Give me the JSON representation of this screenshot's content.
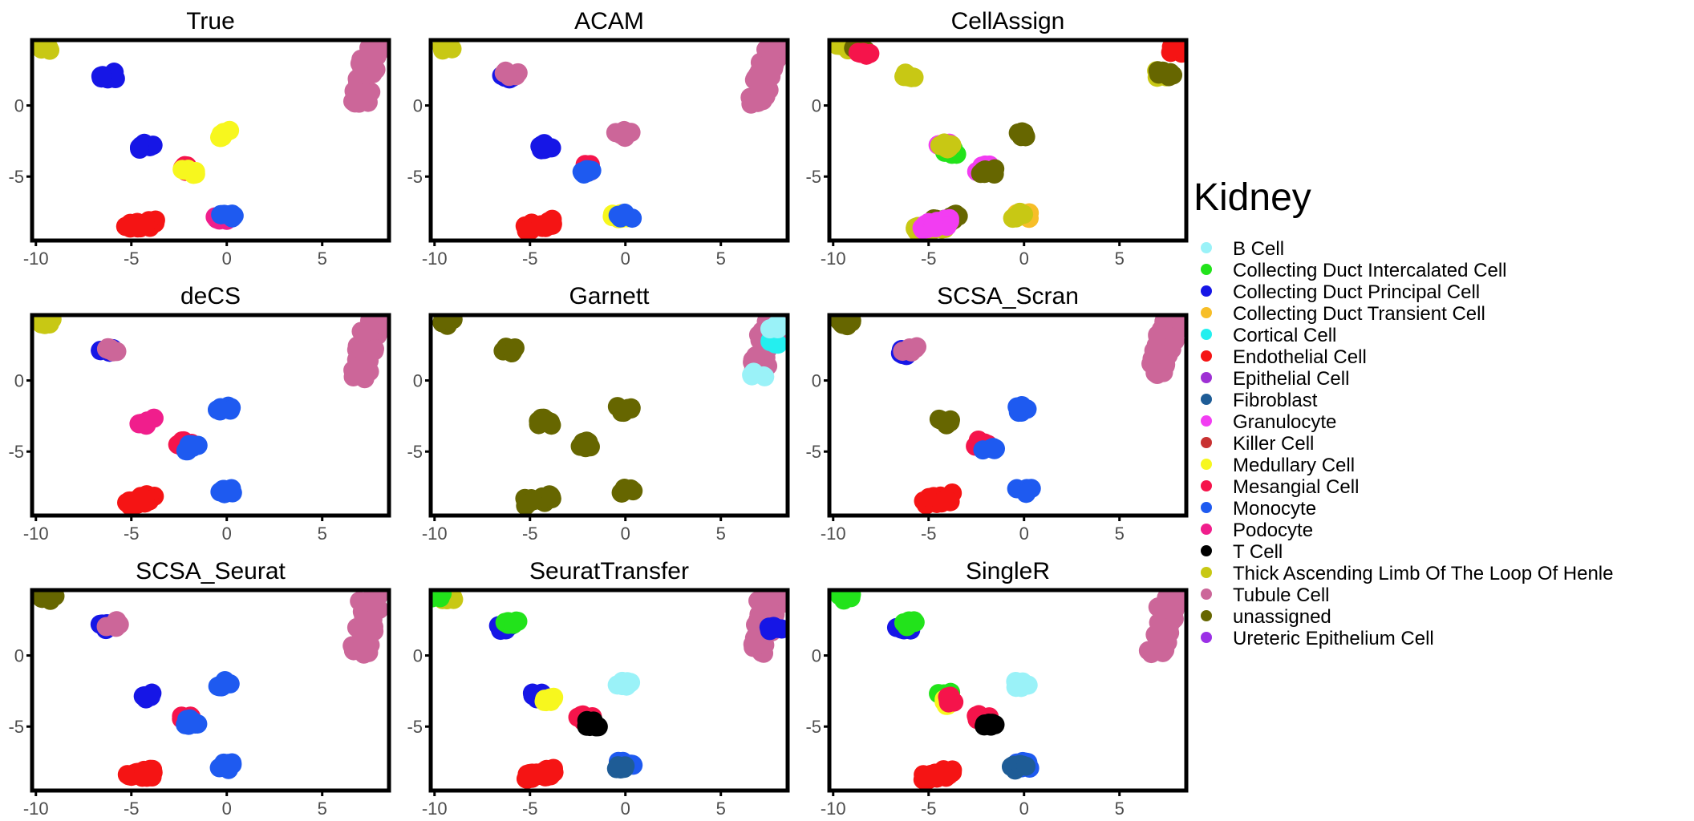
{
  "chart_data": {
    "type": "scatter",
    "xlim": [
      -10.2,
      8.5
    ],
    "ylim": [
      -9.5,
      4.6
    ],
    "x_ticks": [
      -10,
      -5,
      0,
      5
    ],
    "y_ticks": [
      0,
      -5
    ],
    "x_tick_labels": [
      "-10",
      "-5",
      "0",
      "5"
    ],
    "y_tick_labels": [
      "0",
      "-5"
    ],
    "legend": {
      "title": "Kidney",
      "entries": [
        {
          "label": "B Cell",
          "color": "#9AF2F8"
        },
        {
          "label": "Collecting Duct Intercalated Cell",
          "color": "#22E31B"
        },
        {
          "label": "Collecting Duct Principal Cell",
          "color": "#1616E6"
        },
        {
          "label": "Collecting Duct Transient Cell",
          "color": "#F7BE28"
        },
        {
          "label": "Cortical Cell",
          "color": "#24EFEF"
        },
        {
          "label": "Endothelial Cell",
          "color": "#F51414"
        },
        {
          "label": "Epithelial Cell",
          "color": "#9E30D4"
        },
        {
          "label": "Fibroblast",
          "color": "#1E5C96"
        },
        {
          "label": "Granulocyte",
          "color": "#F23DF2"
        },
        {
          "label": "Killer Cell",
          "color": "#C83232"
        },
        {
          "label": "Medullary Cell",
          "color": "#F7F71E"
        },
        {
          "label": "Mesangial Cell",
          "color": "#F5144B"
        },
        {
          "label": "Monocyte",
          "color": "#1E5AF0"
        },
        {
          "label": "Podocyte",
          "color": "#F01E8C"
        },
        {
          "label": "T Cell",
          "color": "#000000"
        },
        {
          "label": "Thick Ascending Limb Of The Loop Of Henle",
          "color": "#C8C814"
        },
        {
          "label": "Tubule Cell",
          "color": "#CC6699"
        },
        {
          "label": "unassigned",
          "color": "#666600"
        },
        {
          "label": "Ureteric Epithelium Cell",
          "color": "#9B30E6"
        }
      ]
    },
    "panels": [
      {
        "title": "True",
        "clusters": [
          {
            "x": -9.4,
            "y": 4.1,
            "color": "#C8C814"
          },
          {
            "x": -6.2,
            "y": 2.1,
            "color": "#1616E6"
          },
          {
            "x": 7.3,
            "y": 2.2,
            "color": "#CC6699"
          },
          {
            "x": -4.2,
            "y": -2.9,
            "color": "#1616E6"
          },
          {
            "x": -2.2,
            "y": -4.4,
            "color": "#F5144B"
          },
          {
            "x": -2.0,
            "y": -4.7,
            "color": "#F7F71E"
          },
          {
            "x": -0.1,
            "y": -2.0,
            "color": "#F7F71E"
          },
          {
            "x": -0.3,
            "y": -7.9,
            "color": "#F01E8C"
          },
          {
            "x": 0.0,
            "y": -7.7,
            "color": "#1E5AF0"
          },
          {
            "x": -4.5,
            "y": -8.4,
            "color": "#F51414"
          }
        ]
      },
      {
        "title": "ACAM",
        "clusters": [
          {
            "x": -9.4,
            "y": 4.1,
            "color": "#C8C814"
          },
          {
            "x": -6.3,
            "y": 2.0,
            "color": "#1616E6"
          },
          {
            "x": -6.0,
            "y": 2.2,
            "color": "#CC6699"
          },
          {
            "x": 7.3,
            "y": 2.2,
            "color": "#CC6699"
          },
          {
            "x": -4.2,
            "y": -2.9,
            "color": "#1616E6"
          },
          {
            "x": -2.2,
            "y": -4.4,
            "color": "#F5144B"
          },
          {
            "x": -1.9,
            "y": -4.7,
            "color": "#1E5AF0"
          },
          {
            "x": -0.1,
            "y": -2.0,
            "color": "#CC6699"
          },
          {
            "x": -0.3,
            "y": -7.8,
            "color": "#F7F71E"
          },
          {
            "x": 0.0,
            "y": -7.7,
            "color": "#1E5AF0"
          },
          {
            "x": -4.5,
            "y": -8.4,
            "color": "#F51414"
          }
        ]
      },
      {
        "title": "CellAssign",
        "clusters": [
          {
            "x": -9.4,
            "y": 4.1,
            "color": "#C8C814"
          },
          {
            "x": -8.6,
            "y": 3.8,
            "color": "#666600"
          },
          {
            "x": -8.4,
            "y": 3.7,
            "color": "#F5144B"
          },
          {
            "x": -6.1,
            "y": 2.1,
            "color": "#C8C814"
          },
          {
            "x": 7.2,
            "y": 2.2,
            "color": "#C8C814"
          },
          {
            "x": 8.0,
            "y": 3.9,
            "color": "#F51414"
          },
          {
            "x": 7.4,
            "y": 2.2,
            "color": "#666600"
          },
          {
            "x": -4.2,
            "y": -2.8,
            "color": "#F23DF2"
          },
          {
            "x": -3.9,
            "y": -3.2,
            "color": "#22E31B"
          },
          {
            "x": -4.1,
            "y": -2.8,
            "color": "#C8C814"
          },
          {
            "x": -2.1,
            "y": -4.4,
            "color": "#F23DF2"
          },
          {
            "x": -1.9,
            "y": -4.7,
            "color": "#666600"
          },
          {
            "x": -0.1,
            "y": -2.0,
            "color": "#666600"
          },
          {
            "x": -0.1,
            "y": -7.8,
            "color": "#F7BE28"
          },
          {
            "x": -0.2,
            "y": -7.7,
            "color": "#C8C814"
          },
          {
            "x": -4.9,
            "y": -8.6,
            "color": "#C8C814"
          },
          {
            "x": -4.2,
            "y": -8.1,
            "color": "#666600"
          },
          {
            "x": -4.6,
            "y": -8.4,
            "color": "#F23DF2"
          }
        ]
      },
      {
        "title": "deCS",
        "clusters": [
          {
            "x": -9.4,
            "y": 4.1,
            "color": "#C8C814"
          },
          {
            "x": -6.3,
            "y": 2.0,
            "color": "#1616E6"
          },
          {
            "x": -6.0,
            "y": 2.2,
            "color": "#CC6699"
          },
          {
            "x": 7.3,
            "y": 2.2,
            "color": "#CC6699"
          },
          {
            "x": -4.2,
            "y": -2.9,
            "color": "#F01E8C"
          },
          {
            "x": -2.2,
            "y": -4.4,
            "color": "#F5144B"
          },
          {
            "x": -1.9,
            "y": -4.7,
            "color": "#1E5AF0"
          },
          {
            "x": -0.1,
            "y": -2.0,
            "color": "#1E5AF0"
          },
          {
            "x": 0.0,
            "y": -7.8,
            "color": "#1E5AF0"
          },
          {
            "x": -4.5,
            "y": -8.4,
            "color": "#F51414"
          }
        ]
      },
      {
        "title": "Garnett",
        "clusters": [
          {
            "x": -9.4,
            "y": 4.1,
            "color": "#666600"
          },
          {
            "x": -6.1,
            "y": 2.1,
            "color": "#666600"
          },
          {
            "x": 7.3,
            "y": 2.2,
            "color": "#CC6699"
          },
          {
            "x": 7.6,
            "y": 2.8,
            "color": "#24EFEF"
          },
          {
            "x": 7.0,
            "y": 0.4,
            "color": "#9AF2F8"
          },
          {
            "x": 7.9,
            "y": 3.8,
            "color": "#9AF2F8"
          },
          {
            "x": -4.2,
            "y": -2.9,
            "color": "#666600"
          },
          {
            "x": -2.1,
            "y": -4.5,
            "color": "#666600"
          },
          {
            "x": -0.1,
            "y": -2.0,
            "color": "#666600"
          },
          {
            "x": 0.0,
            "y": -7.8,
            "color": "#666600"
          },
          {
            "x": -4.5,
            "y": -8.4,
            "color": "#666600"
          }
        ]
      },
      {
        "title": "SCSA_Scran",
        "clusters": [
          {
            "x": -9.4,
            "y": 4.1,
            "color": "#666600"
          },
          {
            "x": -6.3,
            "y": 2.0,
            "color": "#1616E6"
          },
          {
            "x": -6.0,
            "y": 2.2,
            "color": "#CC6699"
          },
          {
            "x": 7.3,
            "y": 2.2,
            "color": "#CC6699"
          },
          {
            "x": -4.2,
            "y": -2.9,
            "color": "#666600"
          },
          {
            "x": -2.2,
            "y": -4.4,
            "color": "#F5144B"
          },
          {
            "x": -1.9,
            "y": -4.7,
            "color": "#1E5AF0"
          },
          {
            "x": -0.1,
            "y": -2.0,
            "color": "#1E5AF0"
          },
          {
            "x": 0.0,
            "y": -7.8,
            "color": "#1E5AF0"
          },
          {
            "x": -4.5,
            "y": -8.4,
            "color": "#F51414"
          }
        ]
      },
      {
        "title": "SCSA_Seurat",
        "clusters": [
          {
            "x": -9.4,
            "y": 4.1,
            "color": "#666600"
          },
          {
            "x": -6.3,
            "y": 2.0,
            "color": "#1616E6"
          },
          {
            "x": -6.0,
            "y": 2.2,
            "color": "#CC6699"
          },
          {
            "x": 7.3,
            "y": 2.2,
            "color": "#CC6699"
          },
          {
            "x": -4.2,
            "y": -2.9,
            "color": "#1616E6"
          },
          {
            "x": -2.2,
            "y": -4.4,
            "color": "#F5144B"
          },
          {
            "x": -1.9,
            "y": -4.7,
            "color": "#1E5AF0"
          },
          {
            "x": -0.1,
            "y": -2.0,
            "color": "#1E5AF0"
          },
          {
            "x": 0.0,
            "y": -7.8,
            "color": "#1E5AF0"
          },
          {
            "x": -4.5,
            "y": -8.4,
            "color": "#F51414"
          }
        ]
      },
      {
        "title": "SeuratTransfer",
        "clusters": [
          {
            "x": -9.4,
            "y": 4.1,
            "color": "#C8C814"
          },
          {
            "x": -9.8,
            "y": 4.3,
            "color": "#22E31B"
          },
          {
            "x": -6.3,
            "y": 2.0,
            "color": "#1616E6"
          },
          {
            "x": -6.0,
            "y": 2.2,
            "color": "#22E31B"
          },
          {
            "x": 7.3,
            "y": 2.2,
            "color": "#CC6699"
          },
          {
            "x": 7.8,
            "y": 2.0,
            "color": "#1616E6"
          },
          {
            "x": -4.5,
            "y": -2.8,
            "color": "#1616E6"
          },
          {
            "x": -3.9,
            "y": -3.1,
            "color": "#F7F71E"
          },
          {
            "x": -2.1,
            "y": -4.4,
            "color": "#F5144B"
          },
          {
            "x": -1.8,
            "y": -4.8,
            "color": "#000000"
          },
          {
            "x": -0.1,
            "y": -2.0,
            "color": "#9AF2F8"
          },
          {
            "x": 0.0,
            "y": -7.7,
            "color": "#1E5AF0"
          },
          {
            "x": -0.3,
            "y": -7.9,
            "color": "#1E5C96"
          },
          {
            "x": -4.5,
            "y": -8.4,
            "color": "#F51414"
          }
        ]
      },
      {
        "title": "SingleR",
        "clusters": [
          {
            "x": -9.4,
            "y": 4.1,
            "color": "#22E31B"
          },
          {
            "x": -6.3,
            "y": 2.0,
            "color": "#1616E6"
          },
          {
            "x": -6.0,
            "y": 2.2,
            "color": "#22E31B"
          },
          {
            "x": 7.3,
            "y": 2.2,
            "color": "#CC6699"
          },
          {
            "x": -4.2,
            "y": -2.8,
            "color": "#22E31B"
          },
          {
            "x": -3.8,
            "y": -3.3,
            "color": "#F7F71E"
          },
          {
            "x": -4.0,
            "y": -3.1,
            "color": "#F5144B"
          },
          {
            "x": -2.1,
            "y": -4.4,
            "color": "#F5144B"
          },
          {
            "x": -1.8,
            "y": -4.8,
            "color": "#000000"
          },
          {
            "x": -0.1,
            "y": -2.0,
            "color": "#9AF2F8"
          },
          {
            "x": 0.0,
            "y": -7.7,
            "color": "#1E5AF0"
          },
          {
            "x": -0.3,
            "y": -7.9,
            "color": "#1E5C96"
          },
          {
            "x": -4.5,
            "y": -8.4,
            "color": "#F51414"
          }
        ]
      }
    ]
  }
}
